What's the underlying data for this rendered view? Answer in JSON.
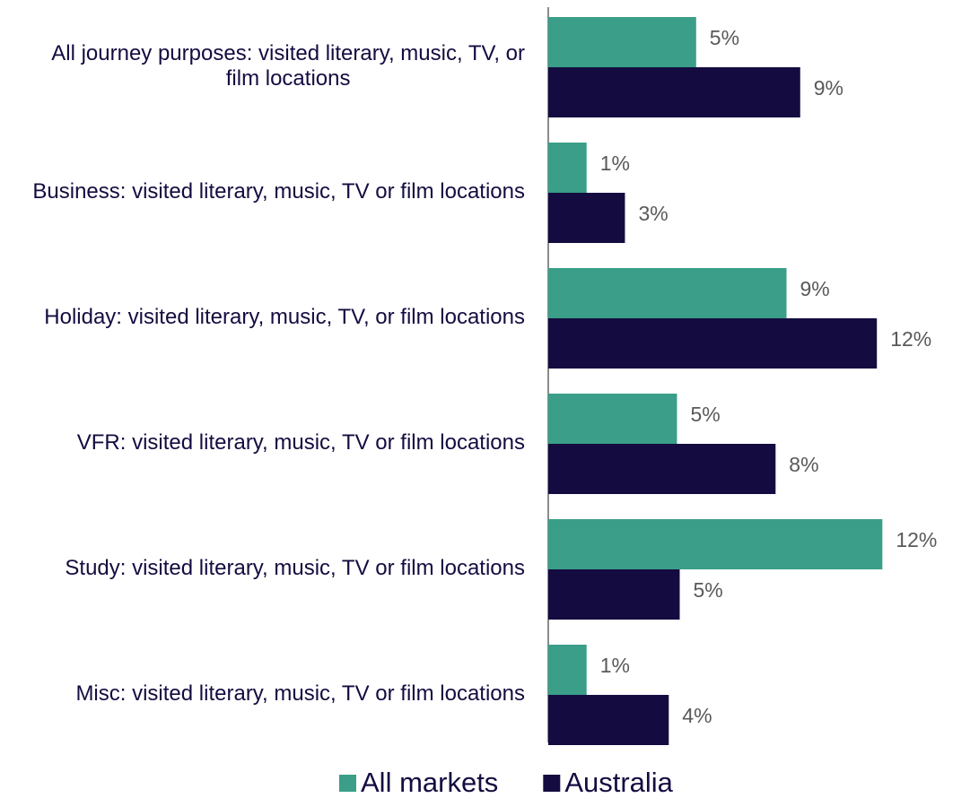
{
  "chart_data": {
    "type": "hbar",
    "categories": [
      "All journey purposes: visited literary, music, TV, or film locations",
      "Business: visited literary, music, TV or film locations",
      "Holiday: visited literary, music, TV, or film locations",
      "VFR: visited literary, music, TV or film locations",
      "Study: visited literary, music, TV or film locations",
      "Misc: visited literary, music, TV or film locations"
    ],
    "series": [
      {
        "name": "All markets",
        "color": "#3a9e88",
        "values": [
          5.4,
          1.4,
          8.7,
          4.7,
          12.2,
          1.4
        ],
        "value_labels": [
          "5%",
          "1%",
          "9%",
          "5%",
          "12%",
          "1%"
        ]
      },
      {
        "name": "Australia",
        "color": "#140c40",
        "values": [
          9.2,
          2.8,
          12.0,
          8.3,
          4.8,
          4.4
        ],
        "value_labels": [
          "9%",
          "3%",
          "12%",
          "8%",
          "5%",
          "4%"
        ]
      }
    ],
    "xlim": [
      0,
      15.4
    ]
  }
}
